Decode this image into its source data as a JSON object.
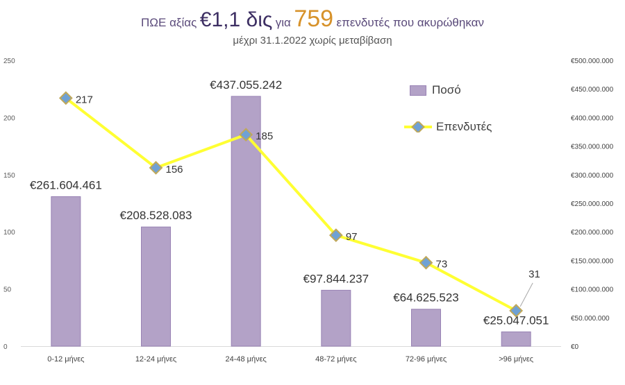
{
  "title": {
    "part1": "ΠΩΕ αξίας",
    "amount": "€1,1 δις",
    "part2": "για",
    "count": "759",
    "part3": "επενδυτές που ακυρώθηκαν"
  },
  "subtitle": "μέχρι 31.1.2022 χωρίς μεταβίβαση",
  "colors": {
    "bar": "#b3a2c7",
    "bar_border": "#9882b4",
    "line": "#ffff33",
    "marker_fill": "#6fa1d4",
    "marker_border": "#c0a85a",
    "title_amount": "#3d2f63",
    "title_count": "#d7922a"
  },
  "chart_data": {
    "type": "bar",
    "categories": [
      "0-12 μήνες",
      "12-24 μήνες",
      "24-48 μήνες",
      "48-72 μήνες",
      "72-96 μήνες",
      ">96 μήνες"
    ],
    "series": [
      {
        "name": "Ποσό",
        "type": "bar",
        "axis": "right",
        "values": [
          261604461,
          208528083,
          437055242,
          97844237,
          64625523,
          25047051
        ],
        "labels": [
          "€261.604.461",
          "€208.528.083",
          "€437.055.242",
          "€97.844.237",
          "€64.625.523",
          "€25.047.051"
        ]
      },
      {
        "name": "Επενδυτές",
        "type": "line",
        "axis": "left",
        "values": [
          217,
          156,
          185,
          97,
          73,
          31
        ],
        "labels": [
          "217",
          "156",
          "185",
          "97",
          "73",
          "31"
        ]
      }
    ],
    "y_left": {
      "ylim": [
        0,
        250
      ],
      "ticks": [
        "0",
        "50",
        "100",
        "150",
        "200",
        "250"
      ]
    },
    "y_right": {
      "ylim": [
        0,
        500000000
      ],
      "ticks": [
        "€0",
        "€50.000.000",
        "€100.000.000",
        "€150.000.000",
        "€200.000.000",
        "€250.000.000",
        "€300.000.000",
        "€350.000.000",
        "€400.000.000",
        "€450.000.000",
        "€500.000.000"
      ]
    },
    "grid": false,
    "legend": "top-right"
  }
}
